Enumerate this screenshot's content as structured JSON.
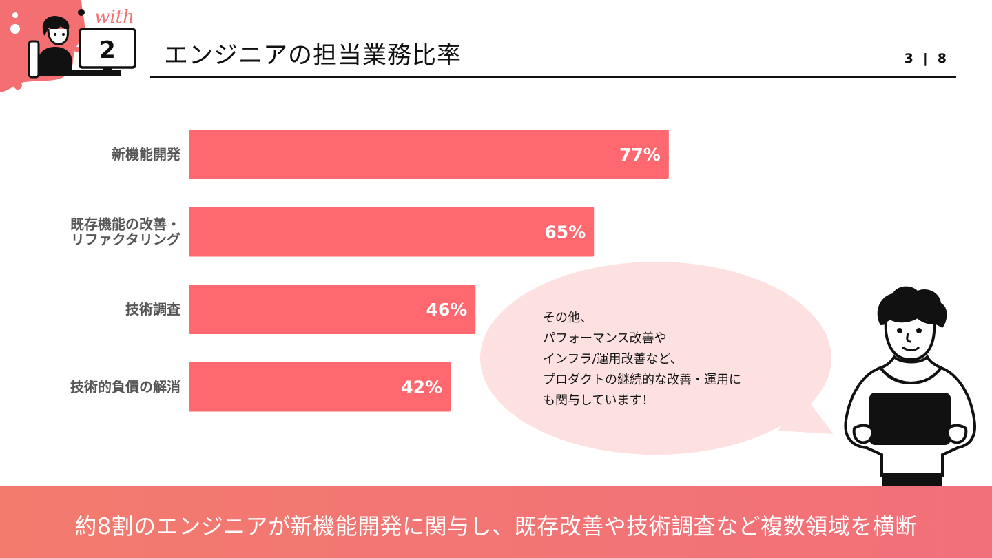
{
  "header": {
    "logo_word": "with",
    "section_number": "2",
    "title": "エンジニアの担当業務比率",
    "page_current": "3",
    "page_separator": "|",
    "page_total": "8"
  },
  "colors": {
    "bar": "#ff686e",
    "bubble": "#fde0e0",
    "accent": "#f36f72",
    "rule": "#111111"
  },
  "chart_data": {
    "type": "bar",
    "orientation": "horizontal",
    "categories": [
      "新機能開発",
      "既存機能の改善・\nリファクタリング",
      "技術調査",
      "技術的負債の解消"
    ],
    "values": [
      77,
      65,
      46,
      42
    ],
    "value_labels": [
      "77%",
      "65%",
      "46%",
      "42%"
    ],
    "xlim": [
      0,
      100
    ],
    "grid": false
  },
  "bubble": {
    "lines": [
      "その他、",
      "パフォーマンス改善や",
      "インフラ/運用改善など、",
      "プロダクトの継続的な改善・運用に",
      "も関与しています！"
    ]
  },
  "footer": {
    "summary": "約8割のエンジニアが新機能開発に関与し、既存改善や技術調査など複数領域を横断"
  },
  "icons": {
    "logo": "engineer-at-desk-icon",
    "person": "person-holding-laptop-icon"
  }
}
